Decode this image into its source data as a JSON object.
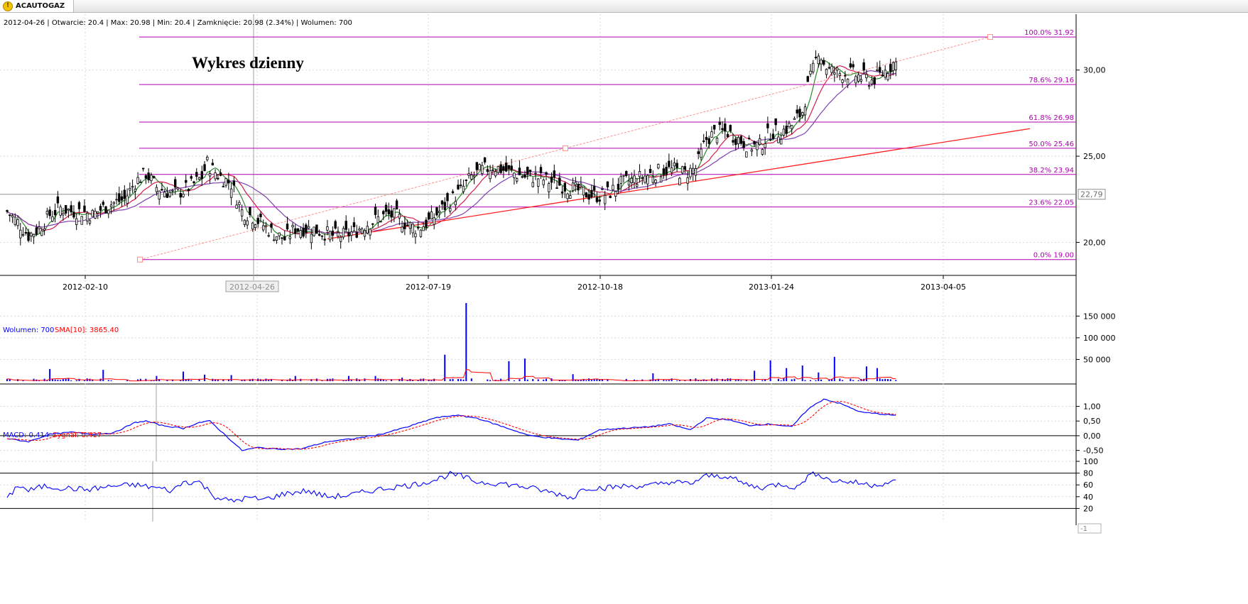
{
  "tab": {
    "label": "ACAUTOGAZ",
    "icon": "warning-icon"
  },
  "info_line": "2012-04-26 | Otwarcie: 20.4 | Max: 20.98 | Min: 20.4 | Zamknięcie: 20.98 (2.34%)  | Wolumen: 700",
  "main_title": "Wykres dzienny",
  "volume_legend": {
    "label": "Wolumen: 700",
    "sma_label": "SMA[10]: 3865.40"
  },
  "macd_legend": {
    "label": "MACD: 0.414",
    "signal_label": "Sygnał: 0.417"
  },
  "colors": {
    "price": "#000000",
    "sma_fast": "#2a8a2a",
    "sma_mid": "#d0204a",
    "sma_slow": "#8040b0",
    "fibo": "#b000b0",
    "trend": "#ff2020",
    "fan": "#ff9090",
    "volume": "#0000ff",
    "vol_sma": "#ff0000",
    "macd": "#0000ff",
    "signal": "#ff0000",
    "osc": "#0000ff"
  },
  "chart_data": [
    {
      "type": "candlestick",
      "title": "Wykres dzienny",
      "x_ticks": [
        "2012-02-10",
        "2012-07-19",
        "2012-10-18",
        "2013-01-24",
        "2013-04-05"
      ],
      "x_ticks_pos": [
        0.0,
        0.0,
        0.0,
        0.0,
        0.0
      ],
      "cursor_date": "2012-04-26",
      "ylim": [
        18.0,
        32.5
      ],
      "y_ticks": [
        20,
        25,
        30
      ],
      "y_tick_labels": [
        "20,00",
        "25,00",
        "30,00"
      ],
      "last_price_label": "22,79",
      "last_price": 22.79,
      "fibonacci": [
        {
          "level": 31.92,
          "label": "100.0% 31.92"
        },
        {
          "level": 29.16,
          "label": "78.6% 29.16"
        },
        {
          "level": 26.98,
          "label": "61.8% 26.98"
        },
        {
          "level": 25.46,
          "label": "50.0% 25.46"
        },
        {
          "level": 23.94,
          "label": "38.2% 23.94"
        },
        {
          "level": 22.05,
          "label": "23.6% 22.05"
        },
        {
          "level": 19.0,
          "label": "0.0% 19.00"
        }
      ],
      "waypoints": [
        [
          0,
          21.8
        ],
        [
          5,
          21.0
        ],
        [
          8,
          20.4
        ],
        [
          12,
          20.8
        ],
        [
          16,
          21.6
        ],
        [
          20,
          22.0
        ],
        [
          24,
          21.8
        ],
        [
          28,
          21.8
        ],
        [
          32,
          21.6
        ],
        [
          36,
          22.0
        ],
        [
          40,
          22.3
        ],
        [
          44,
          22.5
        ],
        [
          48,
          23.5
        ],
        [
          52,
          24.0
        ],
        [
          56,
          23.2
        ],
        [
          62,
          22.8
        ],
        [
          66,
          23.0
        ],
        [
          70,
          23.4
        ],
        [
          73,
          23.8
        ],
        [
          75,
          24.6
        ],
        [
          77,
          24.2
        ],
        [
          80,
          23.8
        ],
        [
          84,
          23.4
        ],
        [
          88,
          21.8
        ],
        [
          92,
          21.5
        ],
        [
          96,
          21.0
        ],
        [
          100,
          20.5
        ],
        [
          104,
          20.2
        ],
        [
          108,
          20.8
        ],
        [
          114,
          20.8
        ],
        [
          118,
          20.6
        ],
        [
          122,
          20.4
        ],
        [
          126,
          20.4
        ],
        [
          130,
          20.6
        ],
        [
          134,
          21.0
        ],
        [
          138,
          21.3
        ],
        [
          142,
          21.6
        ],
        [
          146,
          21.5
        ],
        [
          150,
          21.0
        ],
        [
          154,
          20.8
        ],
        [
          158,
          21.2
        ],
        [
          162,
          21.8
        ],
        [
          166,
          22.4
        ],
        [
          170,
          23.0
        ],
        [
          174,
          23.8
        ],
        [
          178,
          24.2
        ],
        [
          182,
          24.4
        ],
        [
          186,
          24.2
        ],
        [
          190,
          24.0
        ],
        [
          194,
          23.8
        ],
        [
          198,
          23.8
        ],
        [
          202,
          23.6
        ],
        [
          206,
          23.4
        ],
        [
          210,
          23.2
        ],
        [
          214,
          23.0
        ],
        [
          218,
          22.8
        ],
        [
          222,
          22.7
        ],
        [
          226,
          22.9
        ],
        [
          230,
          23.4
        ],
        [
          234,
          23.6
        ],
        [
          238,
          23.8
        ],
        [
          242,
          24.0
        ],
        [
          246,
          24.2
        ],
        [
          250,
          24.2
        ],
        [
          254,
          24.0
        ],
        [
          258,
          24.3
        ],
        [
          262,
          26.0
        ],
        [
          266,
          26.4
        ],
        [
          270,
          26.4
        ],
        [
          274,
          26.0
        ],
        [
          278,
          25.6
        ],
        [
          282,
          25.6
        ],
        [
          286,
          26.4
        ],
        [
          290,
          26.4
        ],
        [
          294,
          26.8
        ],
        [
          298,
          27.6
        ],
        [
          300,
          29.0
        ],
        [
          302,
          30.0
        ],
        [
          304,
          31.2
        ],
        [
          306,
          30.4
        ],
        [
          308,
          30.0
        ],
        [
          312,
          29.8
        ],
        [
          316,
          29.8
        ],
        [
          320,
          29.6
        ],
        [
          324,
          29.4
        ],
        [
          328,
          29.8
        ],
        [
          332,
          30.4
        ]
      ],
      "bars": 334,
      "moving_averages": [
        {
          "name": "SMA fast",
          "period": 5
        },
        {
          "name": "SMA mid",
          "period": 12
        },
        {
          "name": "SMA slow",
          "period": 24
        }
      ],
      "trendline": {
        "from": [
          120,
          20.2
        ],
        "to": [
          350,
          26.6
        ]
      },
      "fan_line": {
        "from": [
          48,
          19.0
        ],
        "to": [
          365,
          31.92
        ]
      }
    },
    {
      "type": "bar",
      "name": "Wolumen",
      "ylim": [
        0,
        180000
      ],
      "y_ticks": [
        50000,
        100000,
        150000
      ],
      "y_tick_labels": [
        "50 000",
        "100 000",
        "150 000"
      ],
      "spikes": [
        [
          16,
          28000
        ],
        [
          36,
          26000
        ],
        [
          56,
          12000
        ],
        [
          66,
          22000
        ],
        [
          74,
          15000
        ],
        [
          84,
          14000
        ],
        [
          108,
          12000
        ],
        [
          128,
          12000
        ],
        [
          138,
          12000
        ],
        [
          148,
          8000
        ],
        [
          164,
          61000
        ],
        [
          172,
          180000
        ],
        [
          188,
          46000
        ],
        [
          194,
          52000
        ],
        [
          212,
          16000
        ],
        [
          242,
          18000
        ],
        [
          280,
          24000
        ],
        [
          286,
          48000
        ],
        [
          292,
          30000
        ],
        [
          298,
          36000
        ],
        [
          304,
          20000
        ],
        [
          310,
          56000
        ],
        [
          322,
          34000
        ],
        [
          326,
          30000
        ]
      ],
      "sma_label": "SMA[10]"
    },
    {
      "type": "line",
      "name": "MACD",
      "ylim": [
        -0.75,
        1.35
      ],
      "y_ticks": [
        -0.5,
        0.0,
        0.5,
        1.0
      ],
      "y_tick_labels": [
        "-0,50",
        "0,00",
        "0,50",
        "1,00"
      ],
      "waypoints": [
        [
          0,
          -0.1
        ],
        [
          8,
          -0.2
        ],
        [
          16,
          0.05
        ],
        [
          24,
          0.12
        ],
        [
          32,
          0.05
        ],
        [
          40,
          0.1
        ],
        [
          48,
          0.45
        ],
        [
          52,
          0.5
        ],
        [
          58,
          0.35
        ],
        [
          66,
          0.25
        ],
        [
          72,
          0.45
        ],
        [
          76,
          0.5
        ],
        [
          82,
          0.0
        ],
        [
          88,
          -0.5
        ],
        [
          94,
          -0.4
        ],
        [
          100,
          -0.45
        ],
        [
          110,
          -0.45
        ],
        [
          120,
          -0.2
        ],
        [
          130,
          -0.1
        ],
        [
          140,
          0.05
        ],
        [
          150,
          0.3
        ],
        [
          160,
          0.6
        ],
        [
          168,
          0.7
        ],
        [
          176,
          0.6
        ],
        [
          186,
          0.3
        ],
        [
          196,
          0.0
        ],
        [
          206,
          -0.1
        ],
        [
          214,
          -0.15
        ],
        [
          222,
          0.2
        ],
        [
          230,
          0.25
        ],
        [
          240,
          0.3
        ],
        [
          248,
          0.4
        ],
        [
          256,
          0.2
        ],
        [
          262,
          0.6
        ],
        [
          270,
          0.55
        ],
        [
          278,
          0.35
        ],
        [
          286,
          0.4
        ],
        [
          294,
          0.3
        ],
        [
          300,
          0.9
        ],
        [
          306,
          1.25
        ],
        [
          312,
          1.1
        ],
        [
          320,
          0.8
        ],
        [
          332,
          0.7
        ]
      ]
    },
    {
      "type": "line",
      "name": "Oscillator",
      "ylim": [
        0,
        100
      ],
      "y_ticks": [
        20,
        40,
        60,
        80,
        100
      ],
      "y_tick_labels": [
        "20",
        "40",
        "60",
        "80",
        "100"
      ],
      "band_levels": [
        20,
        80
      ],
      "bottom_label": "-1",
      "waypoints": [
        [
          0,
          35
        ],
        [
          4,
          60
        ],
        [
          8,
          50
        ],
        [
          14,
          58
        ],
        [
          20,
          55
        ],
        [
          30,
          52
        ],
        [
          40,
          58
        ],
        [
          48,
          60
        ],
        [
          56,
          55
        ],
        [
          62,
          50
        ],
        [
          66,
          65
        ],
        [
          72,
          65
        ],
        [
          78,
          40
        ],
        [
          84,
          32
        ],
        [
          90,
          38
        ],
        [
          96,
          35
        ],
        [
          104,
          45
        ],
        [
          112,
          50
        ],
        [
          120,
          40
        ],
        [
          128,
          42
        ],
        [
          136,
          50
        ],
        [
          144,
          56
        ],
        [
          152,
          60
        ],
        [
          160,
          68
        ],
        [
          166,
          78
        ],
        [
          170,
          75
        ],
        [
          176,
          65
        ],
        [
          186,
          62
        ],
        [
          196,
          55
        ],
        [
          206,
          45
        ],
        [
          212,
          38
        ],
        [
          216,
          55
        ],
        [
          224,
          55
        ],
        [
          232,
          58
        ],
        [
          240,
          58
        ],
        [
          248,
          65
        ],
        [
          256,
          62
        ],
        [
          262,
          75
        ],
        [
          270,
          75
        ],
        [
          276,
          62
        ],
        [
          282,
          55
        ],
        [
          290,
          62
        ],
        [
          296,
          55
        ],
        [
          300,
          75
        ],
        [
          304,
          80
        ],
        [
          308,
          68
        ],
        [
          316,
          65
        ],
        [
          324,
          60
        ],
        [
          332,
          65
        ]
      ]
    }
  ]
}
